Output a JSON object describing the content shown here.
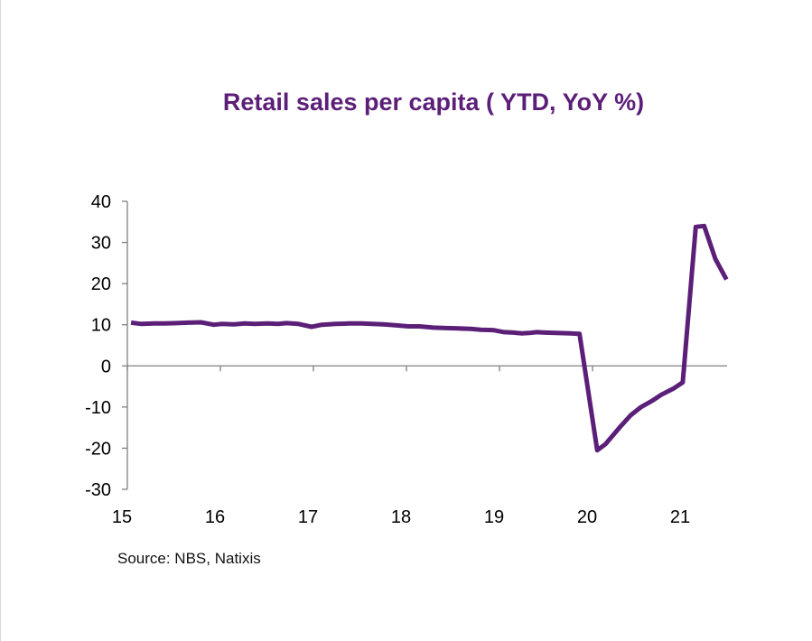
{
  "chart_data": {
    "type": "line",
    "title": "Retail sales per capita  ( YTD, YoY %)",
    "source": "Source: NBS, Natixis",
    "xlabel": "",
    "ylabel": "",
    "ylim": [
      -30,
      40
    ],
    "xlim": [
      15,
      21.45
    ],
    "y_ticks": [
      40,
      30,
      20,
      10,
      0,
      -10,
      -20,
      -30
    ],
    "x_ticks": [
      15,
      16,
      17,
      18,
      19,
      20,
      21
    ],
    "x_tick_labels": [
      "15",
      "16",
      "17",
      "18",
      "19",
      "20",
      "21"
    ],
    "grid": false,
    "legend": "none",
    "line_color": "#5b1f78",
    "series": [
      {
        "x": [
          15.04,
          15.15,
          15.29,
          15.4,
          15.53,
          15.65,
          15.79,
          15.93,
          16.01,
          16.15,
          16.26,
          16.37,
          16.51,
          16.62,
          16.71,
          16.84,
          16.98,
          17.09,
          17.24,
          17.39,
          17.52,
          17.63,
          17.75,
          17.88,
          18.02,
          18.14,
          18.29,
          18.43,
          18.56,
          18.69,
          18.8,
          18.93,
          19.05,
          19.15,
          19.24,
          19.32,
          19.4,
          19.49,
          19.61,
          19.76,
          19.86,
          20.05,
          20.14,
          20.29,
          20.41,
          20.52,
          20.64,
          20.74,
          20.87,
          20.97,
          21.11,
          21.2,
          21.32,
          21.44
        ],
        "y": [
          10.5,
          10.2,
          10.3,
          10.3,
          10.4,
          10.5,
          10.6,
          10.0,
          10.2,
          10.1,
          10.3,
          10.2,
          10.3,
          10.2,
          10.4,
          10.2,
          9.5,
          10.0,
          10.2,
          10.3,
          10.3,
          10.2,
          10.1,
          9.9,
          9.6,
          9.6,
          9.3,
          9.2,
          9.1,
          9.0,
          8.8,
          8.7,
          8.2,
          8.1,
          7.9,
          8.0,
          8.2,
          8.1,
          8.0,
          7.9,
          7.8,
          -20.5,
          -19.0,
          -15.0,
          -12.0,
          -10.0,
          -8.5,
          -7.0,
          -5.5,
          -4.0,
          33.8,
          34.0,
          26.0,
          21.0
        ]
      }
    ]
  }
}
